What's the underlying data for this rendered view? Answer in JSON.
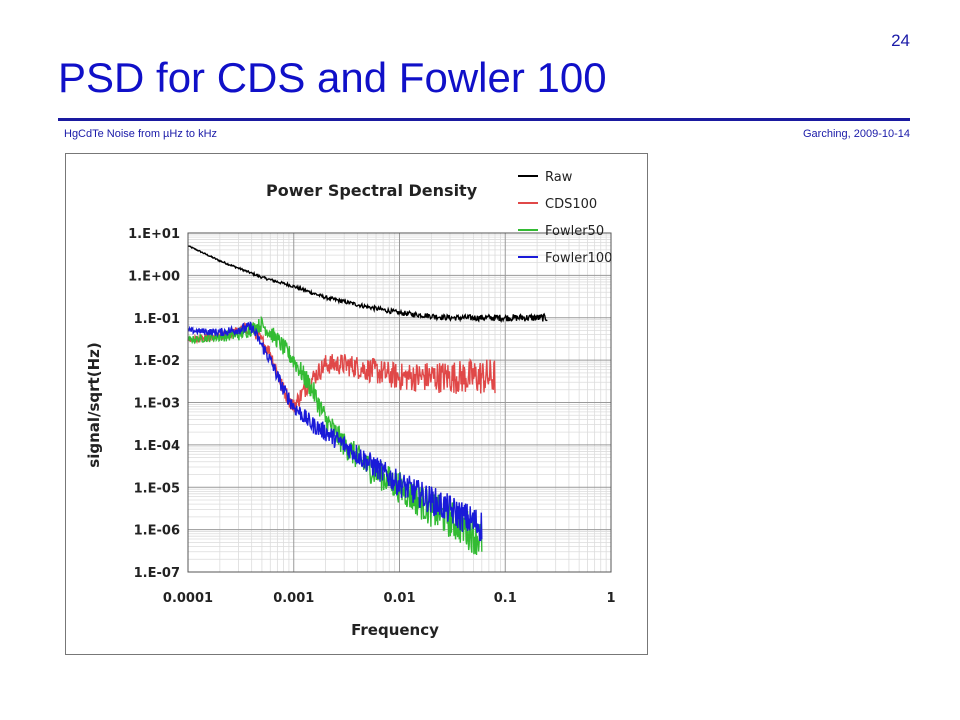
{
  "slide": {
    "title": "PSD for CDS and Fowler 100",
    "page_number": "24",
    "footer_left": "HgCdTe Noise from µHz to kHz",
    "footer_right": "Garching, 2009-10-14"
  },
  "chart_data": {
    "type": "line",
    "title": "Power Spectral Density",
    "xlabel": "Frequency",
    "ylabel": "signal/sqrt(Hz)",
    "x_scale": "log",
    "y_scale": "log",
    "xlim": [
      0.0001,
      1
    ],
    "ylim": [
      1e-07,
      10
    ],
    "x_ticks": [
      0.0001,
      0.001,
      0.01,
      0.1,
      1
    ],
    "x_tick_labels": [
      "0.0001",
      "0.001",
      "0.01",
      "0.1",
      "1"
    ],
    "y_ticks": [
      10,
      1,
      0.1,
      0.01,
      0.001,
      0.0001,
      1e-05,
      1e-06,
      1e-07
    ],
    "y_tick_labels": [
      "1.E+01",
      "1.E+00",
      "1.E-01",
      "1.E-02",
      "1.E-03",
      "1.E-04",
      "1.E-05",
      "1.E-06",
      "1.E-07"
    ],
    "grid": true,
    "legend_position": "top-right",
    "series": [
      {
        "name": "Raw",
        "color": "#000000",
        "noise": 0.18,
        "points": [
          [
            0.0001,
            5
          ],
          [
            0.0002,
            2.2
          ],
          [
            0.0005,
            0.9
          ],
          [
            0.001,
            0.55
          ],
          [
            0.002,
            0.3
          ],
          [
            0.005,
            0.18
          ],
          [
            0.01,
            0.13
          ],
          [
            0.03,
            0.1
          ],
          [
            0.1,
            0.1
          ],
          [
            0.25,
            0.1
          ]
        ]
      },
      {
        "name": "CDS100",
        "color": "#e04848",
        "noise": 0.9,
        "points": [
          [
            0.0001,
            0.03
          ],
          [
            0.0002,
            0.035
          ],
          [
            0.0004,
            0.06
          ],
          [
            0.0006,
            0.015
          ],
          [
            0.0008,
            0.002
          ],
          [
            0.001,
            0.0008
          ],
          [
            0.0014,
            0.003
          ],
          [
            0.002,
            0.008
          ],
          [
            0.003,
            0.008
          ],
          [
            0.005,
            0.006
          ],
          [
            0.01,
            0.004
          ],
          [
            0.03,
            0.004
          ],
          [
            0.08,
            0.004
          ]
        ]
      },
      {
        "name": "Fowler50",
        "color": "#33bb33",
        "noise": 1.0,
        "points": [
          [
            0.0001,
            0.03
          ],
          [
            0.0003,
            0.04
          ],
          [
            0.0005,
            0.07
          ],
          [
            0.0007,
            0.03
          ],
          [
            0.001,
            0.01
          ],
          [
            0.0015,
            0.002
          ],
          [
            0.002,
            0.0004
          ],
          [
            0.003,
            0.0001
          ],
          [
            0.005,
            3e-05
          ],
          [
            0.01,
            1e-05
          ],
          [
            0.02,
            3e-06
          ],
          [
            0.04,
            1.2e-06
          ],
          [
            0.06,
            6e-07
          ]
        ]
      },
      {
        "name": "Fowler100",
        "color": "#1a1ad8",
        "noise": 0.8,
        "points": [
          [
            0.0001,
            0.05
          ],
          [
            0.0002,
            0.045
          ],
          [
            0.0004,
            0.06
          ],
          [
            0.0006,
            0.01
          ],
          [
            0.0008,
            0.002
          ],
          [
            0.001,
            0.0008
          ],
          [
            0.0015,
            0.0003
          ],
          [
            0.002,
            0.0002
          ],
          [
            0.003,
            0.0001
          ],
          [
            0.005,
            4e-05
          ],
          [
            0.01,
            1.2e-05
          ],
          [
            0.02,
            5e-06
          ],
          [
            0.04,
            2e-06
          ],
          [
            0.06,
            1.2e-06
          ]
        ]
      }
    ]
  }
}
